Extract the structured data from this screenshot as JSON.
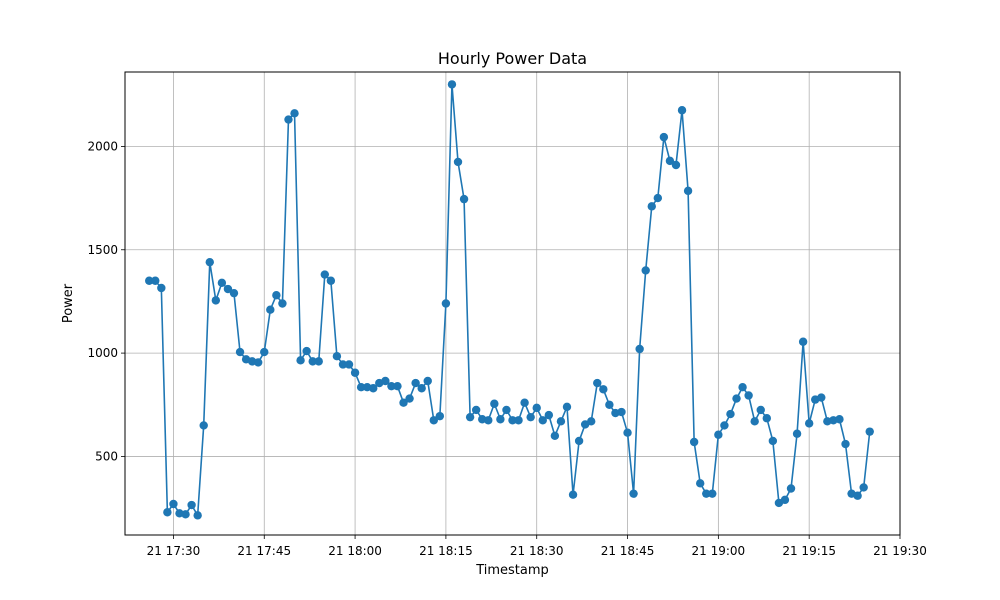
{
  "chart_data": {
    "type": "line",
    "title": "Hourly Power Data",
    "xlabel": "Timestamp",
    "ylabel": "Power",
    "x_tick_labels": [
      "21 17:30",
      "21 17:45",
      "21 18:00",
      "21 18:15",
      "21 18:30",
      "21 18:45",
      "21 19:00",
      "21 19:15",
      "21 19:30"
    ],
    "x_ticks": [
      "17:30",
      "17:45",
      "18:00",
      "18:15",
      "18:30",
      "18:45",
      "19:00",
      "19:15",
      "19:30"
    ],
    "y_ticks": [
      500,
      1000,
      1500,
      2000
    ],
    "xlim": [
      "17:22",
      "19:30"
    ],
    "ylim": [
      120,
      2360
    ],
    "grid": true,
    "marker": "circle",
    "color": "#1f77b4",
    "series": [
      {
        "x": [
          "17:26",
          "17:27",
          "17:28",
          "17:29",
          "17:30",
          "17:31",
          "17:32",
          "17:33",
          "17:34",
          "17:35",
          "17:36",
          "17:37",
          "17:38",
          "17:39",
          "17:40",
          "17:41",
          "17:42",
          "17:43",
          "17:44",
          "17:45",
          "17:46",
          "17:47",
          "17:48",
          "17:49",
          "17:50",
          "17:51",
          "17:52",
          "17:53",
          "17:54",
          "17:55",
          "17:56",
          "17:57",
          "17:58",
          "17:59",
          "18:00",
          "18:01",
          "18:02",
          "18:03",
          "18:04",
          "18:05",
          "18:06",
          "18:07",
          "18:08",
          "18:09",
          "18:10",
          "18:11",
          "18:12",
          "18:13",
          "18:14",
          "18:15",
          "18:16",
          "18:17",
          "18:18",
          "18:19",
          "18:20",
          "18:21",
          "18:22",
          "18:23",
          "18:24",
          "18:25",
          "18:26",
          "18:27",
          "18:28",
          "18:29",
          "18:30",
          "18:31",
          "18:32",
          "18:33",
          "18:34",
          "18:35",
          "18:36",
          "18:37",
          "18:38",
          "18:39",
          "18:40",
          "18:41",
          "18:42",
          "18:43",
          "18:44",
          "18:45",
          "18:46",
          "18:47",
          "18:48",
          "18:49",
          "18:50",
          "18:51",
          "18:52",
          "18:53",
          "18:54",
          "18:55",
          "18:56",
          "18:57",
          "18:58",
          "18:59",
          "19:00",
          "19:01",
          "19:02",
          "19:03",
          "19:04",
          "19:05",
          "19:06",
          "19:07",
          "19:08",
          "19:09",
          "19:10",
          "19:11",
          "19:12",
          "19:13",
          "19:14",
          "19:15",
          "19:16",
          "19:17",
          "19:18",
          "19:19",
          "19:20",
          "19:21",
          "19:22",
          "19:23",
          "19:24",
          "19:25"
        ],
        "y": [
          1350,
          1350,
          1315,
          230,
          270,
          225,
          220,
          265,
          215,
          650,
          1440,
          1255,
          1340,
          1310,
          1290,
          1005,
          970,
          960,
          955,
          1005,
          1210,
          1280,
          1240,
          2130,
          2160,
          965,
          1010,
          960,
          960,
          1380,
          1350,
          985,
          945,
          945,
          905,
          835,
          835,
          830,
          855,
          865,
          840,
          840,
          760,
          780,
          855,
          830,
          865,
          675,
          695,
          1240,
          2300,
          1925,
          1745,
          690,
          725,
          680,
          675,
          755,
          680,
          725,
          675,
          675,
          760,
          690,
          735,
          675,
          700,
          600,
          670,
          740,
          315,
          575,
          655,
          670,
          855,
          825,
          750,
          710,
          715,
          615,
          320,
          1020,
          1400,
          1710,
          1750,
          2045,
          1930,
          1910,
          2175,
          1785,
          570,
          370,
          320,
          320,
          605,
          650,
          705,
          780,
          835,
          795,
          670,
          725,
          685,
          575,
          275,
          290,
          345,
          610,
          1055,
          660,
          775,
          785,
          670,
          675,
          680,
          560,
          320,
          310,
          350,
          620
        ]
      }
    ]
  }
}
